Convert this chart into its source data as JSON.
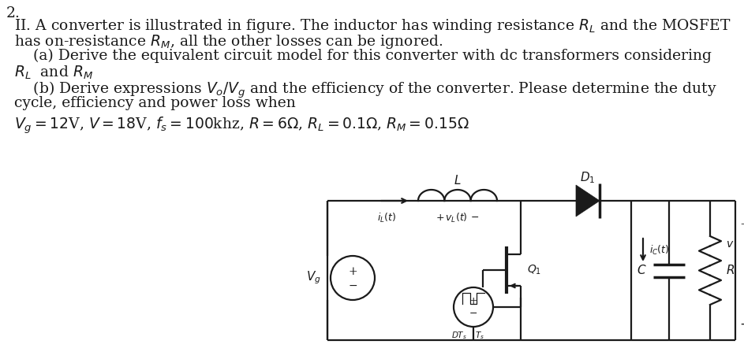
{
  "bg_color": "#ffffff",
  "text_color": "#1a1a1a",
  "line_color": "#1a1a1a",
  "fs_main": 13.5,
  "fs_small": 11.5,
  "text_block": {
    "line1": "II. A converter is illustrated in figure. The inductor has winding resistance $R_L$ and the MOSFET",
    "line2": "has on-resistance $R_M$, all the other losses can be ignored.",
    "line3a": "    (a) Derive the equivalent circuit model for this converter with dc transformers considering",
    "line3b": "$R_L$  and $R_M$",
    "line4a": "    (b) Derive expressions $V_o/V_g$ and the efficiency of the converter. Please determine the duty",
    "line4b": "cycle, efficiency and power loss when",
    "line5": "$V_g =12$V, $V =18$V, $f_s =100$khz, $R = 6\\Omega$, $R_L = 0.1\\Omega$, $R_M = 0.15\\Omega$"
  },
  "num_label": "2."
}
